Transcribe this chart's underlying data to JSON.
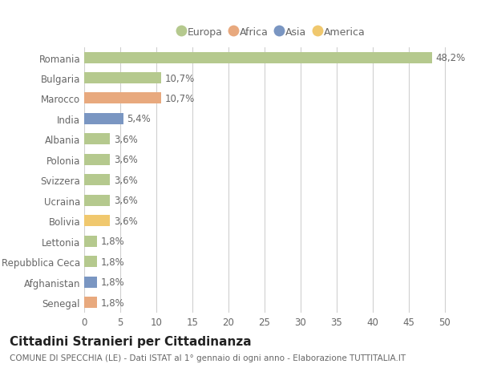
{
  "countries": [
    "Romania",
    "Bulgaria",
    "Marocco",
    "India",
    "Albania",
    "Polonia",
    "Svizzera",
    "Ucraina",
    "Bolivia",
    "Lettonia",
    "Repubblica Ceca",
    "Afghanistan",
    "Senegal"
  ],
  "values": [
    48.2,
    10.7,
    10.7,
    5.4,
    3.6,
    3.6,
    3.6,
    3.6,
    3.6,
    1.8,
    1.8,
    1.8,
    1.8
  ],
  "labels": [
    "48,2%",
    "10,7%",
    "10,7%",
    "5,4%",
    "3,6%",
    "3,6%",
    "3,6%",
    "3,6%",
    "3,6%",
    "1,8%",
    "1,8%",
    "1,8%",
    "1,8%"
  ],
  "continents": [
    "Europa",
    "Europa",
    "Africa",
    "Asia",
    "Europa",
    "Europa",
    "Europa",
    "Europa",
    "America",
    "Europa",
    "Europa",
    "Asia",
    "Africa"
  ],
  "colors": {
    "Europa": "#b5c98e",
    "Africa": "#e8a97e",
    "Asia": "#7a96c2",
    "America": "#f0c86e"
  },
  "legend_order": [
    "Europa",
    "Africa",
    "Asia",
    "America"
  ],
  "title": "Cittadini Stranieri per Cittadinanza",
  "subtitle": "COMUNE DI SPECCHIA (LE) - Dati ISTAT al 1° gennaio di ogni anno - Elaborazione TUTTITALIA.IT",
  "xlim": [
    0,
    52
  ],
  "xticks": [
    0,
    5,
    10,
    15,
    20,
    25,
    30,
    35,
    40,
    45,
    50
  ],
  "background_color": "#ffffff",
  "grid_color": "#d0d0d0",
  "bar_height": 0.55,
  "label_fontsize": 8.5,
  "tick_fontsize": 8.5,
  "title_fontsize": 11,
  "subtitle_fontsize": 7.5,
  "legend_fontsize": 9
}
